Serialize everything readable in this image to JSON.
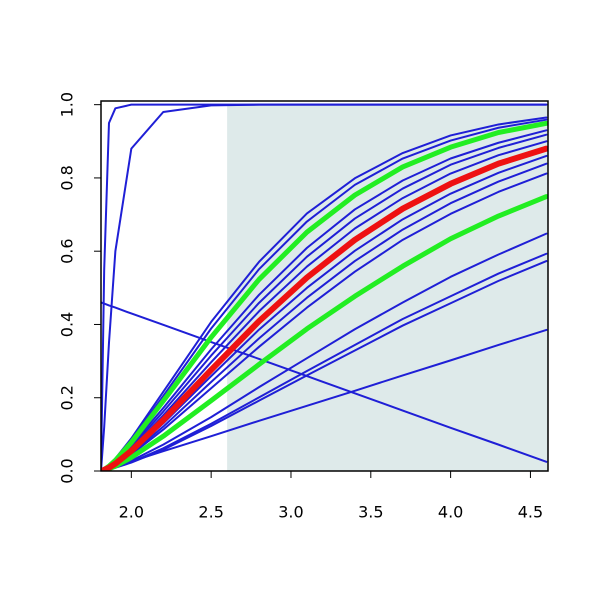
{
  "chart_data": {
    "type": "line",
    "x": [
      1.81,
      1.83,
      1.86,
      1.9,
      2.0,
      2.2,
      2.5,
      2.8,
      3.1,
      3.4,
      3.7,
      4.0,
      4.3,
      4.6
    ],
    "xlim": [
      1.81,
      4.61
    ],
    "ylim": [
      0,
      1.01
    ],
    "xticks": [
      {
        "value": 2,
        "label": "2.0"
      },
      2.5,
      {
        "value": 3,
        "label": "3.0"
      },
      3.5,
      {
        "value": 4,
        "label": "4.0"
      },
      4.5
    ],
    "yticks": [
      {
        "value": 0,
        "label": "0.0"
      },
      0.2,
      0.4,
      0.6,
      0.8,
      {
        "value": 1,
        "label": "1.0"
      }
    ],
    "shade": {
      "xlim": [
        2.6,
        4.61
      ],
      "ylim": [
        0,
        1
      ],
      "color": "#deeaea"
    },
    "series": [
      {
        "color": "#1f1fd6",
        "width": 2,
        "values": [
          0,
          0.55,
          0.95,
          0.99,
          1,
          1,
          1,
          1,
          1,
          1,
          1,
          1,
          1,
          1
        ]
      },
      {
        "color": "#1f1fd6",
        "width": 2,
        "values": [
          0,
          0.12,
          0.35,
          0.6,
          0.88,
          0.98,
          0.998,
          1,
          1,
          1,
          1,
          1,
          1,
          1
        ]
      },
      {
        "color": "#1f1fd6",
        "width": 2,
        "values": [
          0.46,
          0.457,
          0.452,
          0.446,
          0.43,
          0.399,
          0.352,
          0.306,
          0.259,
          0.212,
          0.165,
          0.118,
          0.072,
          0.025
        ]
      },
      {
        "color": "#1f1fd6",
        "width": 2,
        "values": [
          0,
          0.003,
          0.007,
          0.012,
          0.026,
          0.054,
          0.095,
          0.137,
          0.178,
          0.219,
          0.261,
          0.302,
          0.344,
          0.385
        ]
      },
      {
        "color": "#1f1fd6",
        "width": 2,
        "values": [
          0,
          0.005,
          0.015,
          0.034,
          0.089,
          0.216,
          0.407,
          0.571,
          0.703,
          0.799,
          0.868,
          0.916,
          0.946,
          0.965
        ]
      },
      {
        "color": "#1f1fd6",
        "width": 2,
        "values": [
          0,
          0.005,
          0.014,
          0.032,
          0.084,
          0.205,
          0.389,
          0.551,
          0.681,
          0.781,
          0.853,
          0.902,
          0.937,
          0.959
        ]
      },
      {
        "color": "#1f1fd6",
        "width": 2,
        "values": [
          0,
          0.004,
          0.011,
          0.026,
          0.07,
          0.172,
          0.332,
          0.481,
          0.609,
          0.714,
          0.793,
          0.853,
          0.896,
          0.93
        ]
      },
      {
        "color": "#1f1fd6",
        "width": 2,
        "values": [
          0,
          0.004,
          0.011,
          0.024,
          0.065,
          0.162,
          0.315,
          0.459,
          0.585,
          0.689,
          0.771,
          0.836,
          0.882,
          0.918
        ]
      },
      {
        "color": "#1f1fd6",
        "width": 2,
        "values": [
          0,
          0.003,
          0.01,
          0.022,
          0.06,
          0.152,
          0.297,
          0.436,
          0.558,
          0.662,
          0.745,
          0.812,
          0.862,
          0.9
        ]
      },
      {
        "color": "#1f1fd6",
        "width": 2,
        "values": [
          0,
          0.003,
          0.008,
          0.018,
          0.052,
          0.13,
          0.259,
          0.386,
          0.5,
          0.601,
          0.687,
          0.757,
          0.814,
          0.86
        ]
      },
      {
        "color": "#1f1fd6",
        "width": 2,
        "values": [
          0,
          0.003,
          0.008,
          0.017,
          0.048,
          0.121,
          0.243,
          0.362,
          0.473,
          0.573,
          0.659,
          0.731,
          0.79,
          0.839
        ]
      },
      {
        "color": "#1f1fd6",
        "width": 2,
        "values": [
          0,
          0.002,
          0.007,
          0.015,
          0.045,
          0.113,
          0.226,
          0.339,
          0.446,
          0.544,
          0.631,
          0.702,
          0.762,
          0.812
        ]
      },
      {
        "color": "#1f1fd6",
        "width": 2,
        "values": [
          0,
          0.001,
          0.005,
          0.01,
          0.028,
          0.072,
          0.147,
          0.229,
          0.308,
          0.387,
          0.46,
          0.53,
          0.591,
          0.648
        ]
      },
      {
        "color": "#1f1fd6",
        "width": 2,
        "values": [
          0,
          0.001,
          0.004,
          0.009,
          0.024,
          0.062,
          0.129,
          0.201,
          0.273,
          0.344,
          0.415,
          0.477,
          0.539,
          0.593
        ]
      },
      {
        "color": "#1f1fd6",
        "width": 2,
        "values": [
          0,
          0.001,
          0.004,
          0.009,
          0.023,
          0.058,
          0.123,
          0.192,
          0.261,
          0.329,
          0.397,
          0.458,
          0.519,
          0.573
        ]
      },
      {
        "color": "#22ee22",
        "width": 5,
        "values": [
          0,
          0.004,
          0.013,
          0.029,
          0.078,
          0.191,
          0.365,
          0.523,
          0.652,
          0.753,
          0.83,
          0.884,
          0.924,
          0.949
        ]
      },
      {
        "color": "#22ee22",
        "width": 5,
        "values": [
          0,
          0.002,
          0.006,
          0.013,
          0.037,
          0.095,
          0.192,
          0.291,
          0.388,
          0.477,
          0.559,
          0.634,
          0.696,
          0.749
        ]
      },
      {
        "color": "#ee1111",
        "width": 6,
        "values": [
          0,
          0.003,
          0.009,
          0.02,
          0.055,
          0.139,
          0.276,
          0.409,
          0.528,
          0.631,
          0.716,
          0.784,
          0.839,
          0.88
        ]
      }
    ]
  }
}
